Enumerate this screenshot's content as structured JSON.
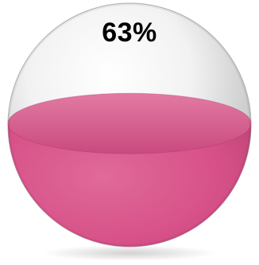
{
  "gauge": {
    "label": "63%",
    "fill_fraction": 0.63,
    "fill_color": "#d75188",
    "glass_color": "#d8d8d8"
  }
}
